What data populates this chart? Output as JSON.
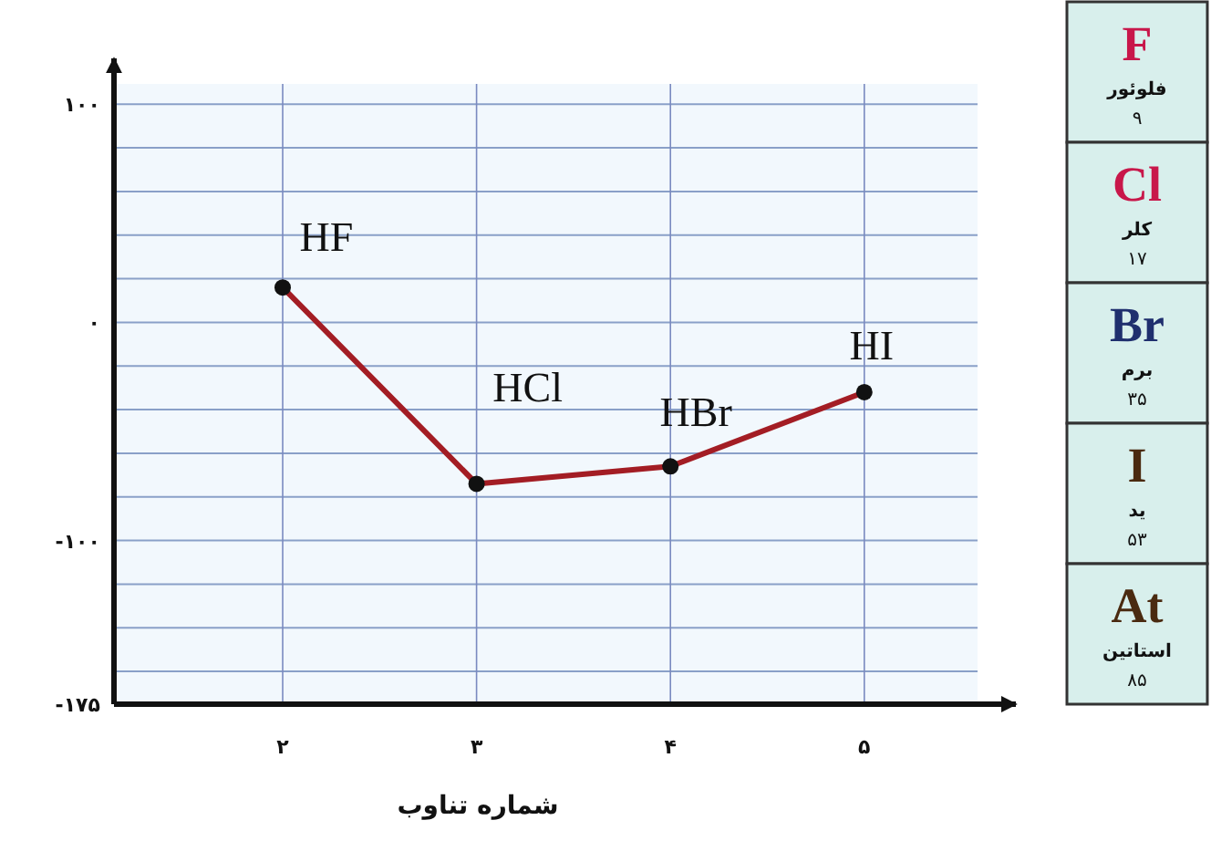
{
  "chart_data": [
    {
      "type": "line",
      "xlabel": "شماره تناوب",
      "categories": [
        "۲",
        "۳",
        "۴",
        "۵"
      ],
      "series": [
        {
          "color": "#a31d24",
          "values": [
            16,
            -74,
            -66,
            -32
          ]
        }
      ],
      "ylim": [
        -175,
        121
      ],
      "yticks": [
        {
          "value": 100,
          "label": "۱۰۰"
        },
        {
          "value": 80,
          "label": null
        },
        {
          "value": 60,
          "label": null
        },
        {
          "value": 40,
          "label": null
        },
        {
          "value": 20,
          "label": null
        },
        {
          "value": 0,
          "label": "۰"
        },
        {
          "value": -20,
          "label": null
        },
        {
          "value": -40,
          "label": null
        },
        {
          "value": -60,
          "label": null
        },
        {
          "value": -80,
          "label": null
        },
        {
          "value": -100,
          "label": "-۱۰۰"
        },
        {
          "value": -120,
          "label": null
        },
        {
          "value": -140,
          "label": null
        },
        {
          "value": -160,
          "label": null
        },
        {
          "value": -175,
          "label": "-۱۷۵"
        }
      ],
      "grid": true,
      "marker": "circle",
      "annotations": [
        {
          "text": "HF",
          "x": "۲",
          "y": 16
        },
        {
          "text": "HCl",
          "x": "۳",
          "y": -74
        },
        {
          "text": "HBr",
          "x": "۴",
          "y": -66
        },
        {
          "text": "HI",
          "x": "۵",
          "y": -32
        }
      ]
    },
    {
      "type": "other",
      "annotations": [
        "F",
        "فلوئور",
        "۹",
        "Cl",
        "کلر",
        "۱۷",
        "Br",
        "برم",
        "۳۵",
        "I",
        "ید",
        "۵۳",
        "At",
        "استاتین",
        "۸۵"
      ]
    }
  ]
}
